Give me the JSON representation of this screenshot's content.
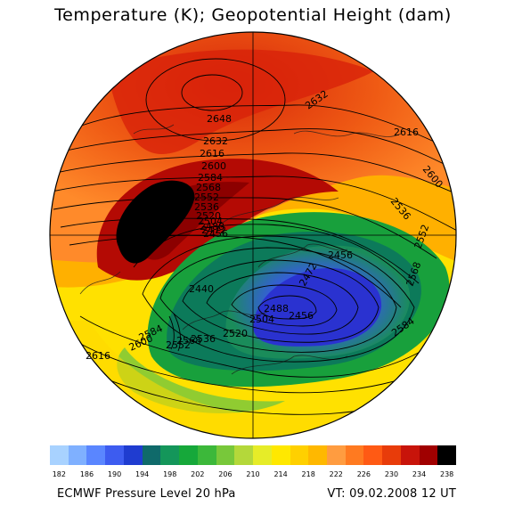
{
  "title": "Temperature (K); Geopotential Height (dam)",
  "footer": {
    "left": "ECMWF Pressure Level 20 hPa",
    "right": "VT: 09.02.2008 12 UT"
  },
  "legend": {
    "colors": [
      "#a8d2ff",
      "#7fb0ff",
      "#5a86ff",
      "#3d5cf0",
      "#1f3cd0",
      "#0f6a6a",
      "#14965a",
      "#16a83a",
      "#3cb83a",
      "#78c83a",
      "#b4d83a",
      "#e6ec28",
      "#ffe800",
      "#ffd000",
      "#ffb800",
      "#ff9c40",
      "#ff7a20",
      "#ff5a14",
      "#e83c0a",
      "#c8140a",
      "#a00000",
      "#000000"
    ],
    "tick_labels": [
      "182",
      "186",
      "190",
      "194",
      "198",
      "202",
      "206",
      "210",
      "214",
      "218",
      "222",
      "226",
      "230",
      "234",
      "238"
    ]
  },
  "contour_labels": [
    "2648",
    "2632",
    "2616",
    "2600",
    "2584",
    "2568",
    "2552",
    "2536",
    "2520",
    "2504",
    "2488",
    "2472",
    "2456",
    "2440",
    "2616",
    "2600",
    "2584",
    "2568",
    "2456",
    "2632",
    "2616",
    "2600",
    "2536",
    "2552",
    "2568",
    "2584",
    "2456",
    "2472",
    "2488",
    "2504",
    "2520",
    "2536",
    "2552"
  ]
}
